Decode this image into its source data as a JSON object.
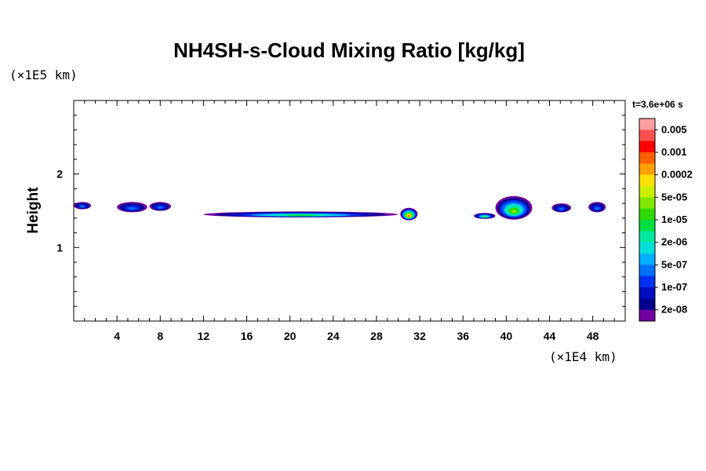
{
  "chart_data": {
    "type": "heatmap",
    "title": "NH4SH-s-Cloud Mixing Ratio [kg/kg]",
    "ylabel": "Height",
    "xlabel": "",
    "x_unit": "(×1E4 km)",
    "y_unit": "(×1E5 km)",
    "time_label": "t=3.6e+06 s",
    "xlim": [
      0,
      51
    ],
    "ylim": [
      0,
      3
    ],
    "x_ticks": [
      4,
      8,
      12,
      16,
      20,
      24,
      28,
      32,
      36,
      40,
      44,
      48
    ],
    "x_tick_labels": [
      "4",
      "8",
      "12",
      "16",
      "20",
      "24",
      "28",
      "32",
      "36",
      "40",
      "44",
      "48"
    ],
    "y_ticks": [
      1,
      2
    ],
    "y_tick_labels": [
      "1",
      "2"
    ],
    "colorbar": {
      "labels": [
        "0.005",
        "0.001",
        "0.0002",
        "5e-05",
        "1e-05",
        "2e-06",
        "5e-07",
        "1e-07",
        "2e-08"
      ],
      "colors": [
        "#ffa0a0",
        "#ff5050",
        "#ff0000",
        "#ff6000",
        "#ffa000",
        "#ffe000",
        "#c8f000",
        "#80e800",
        "#30d800",
        "#00e040",
        "#00e8a0",
        "#00e0d8",
        "#00b0ff",
        "#0070ff",
        "#0030f0",
        "#0010c0",
        "#000090",
        "#7000a0"
      ]
    },
    "cloud_regions": [
      {
        "x": [
          0.0,
          1.6
        ],
        "y": [
          1.52,
          1.62
        ],
        "peak": "5e-07"
      },
      {
        "x": [
          4.0,
          6.8
        ],
        "y": [
          1.48,
          1.62
        ],
        "peak": "5e-07"
      },
      {
        "x": [
          7.0,
          9.0
        ],
        "y": [
          1.5,
          1.62
        ],
        "peak": "5e-07"
      },
      {
        "x": [
          12.0,
          30.0
        ],
        "y": [
          1.41,
          1.49
        ],
        "peak": "1e-05"
      },
      {
        "x": [
          30.2,
          31.8
        ],
        "y": [
          1.37,
          1.54
        ],
        "peak": "0.001"
      },
      {
        "x": [
          37.0,
          39.0
        ],
        "y": [
          1.39,
          1.47
        ],
        "peak": "1e-05"
      },
      {
        "x": [
          39.0,
          42.4
        ],
        "y": [
          1.38,
          1.7
        ],
        "peak": "5e-05"
      },
      {
        "x": [
          44.2,
          46.0
        ],
        "y": [
          1.48,
          1.6
        ],
        "peak": "5e-07"
      },
      {
        "x": [
          47.6,
          49.2
        ],
        "y": [
          1.48,
          1.62
        ],
        "peak": "5e-07"
      }
    ]
  }
}
